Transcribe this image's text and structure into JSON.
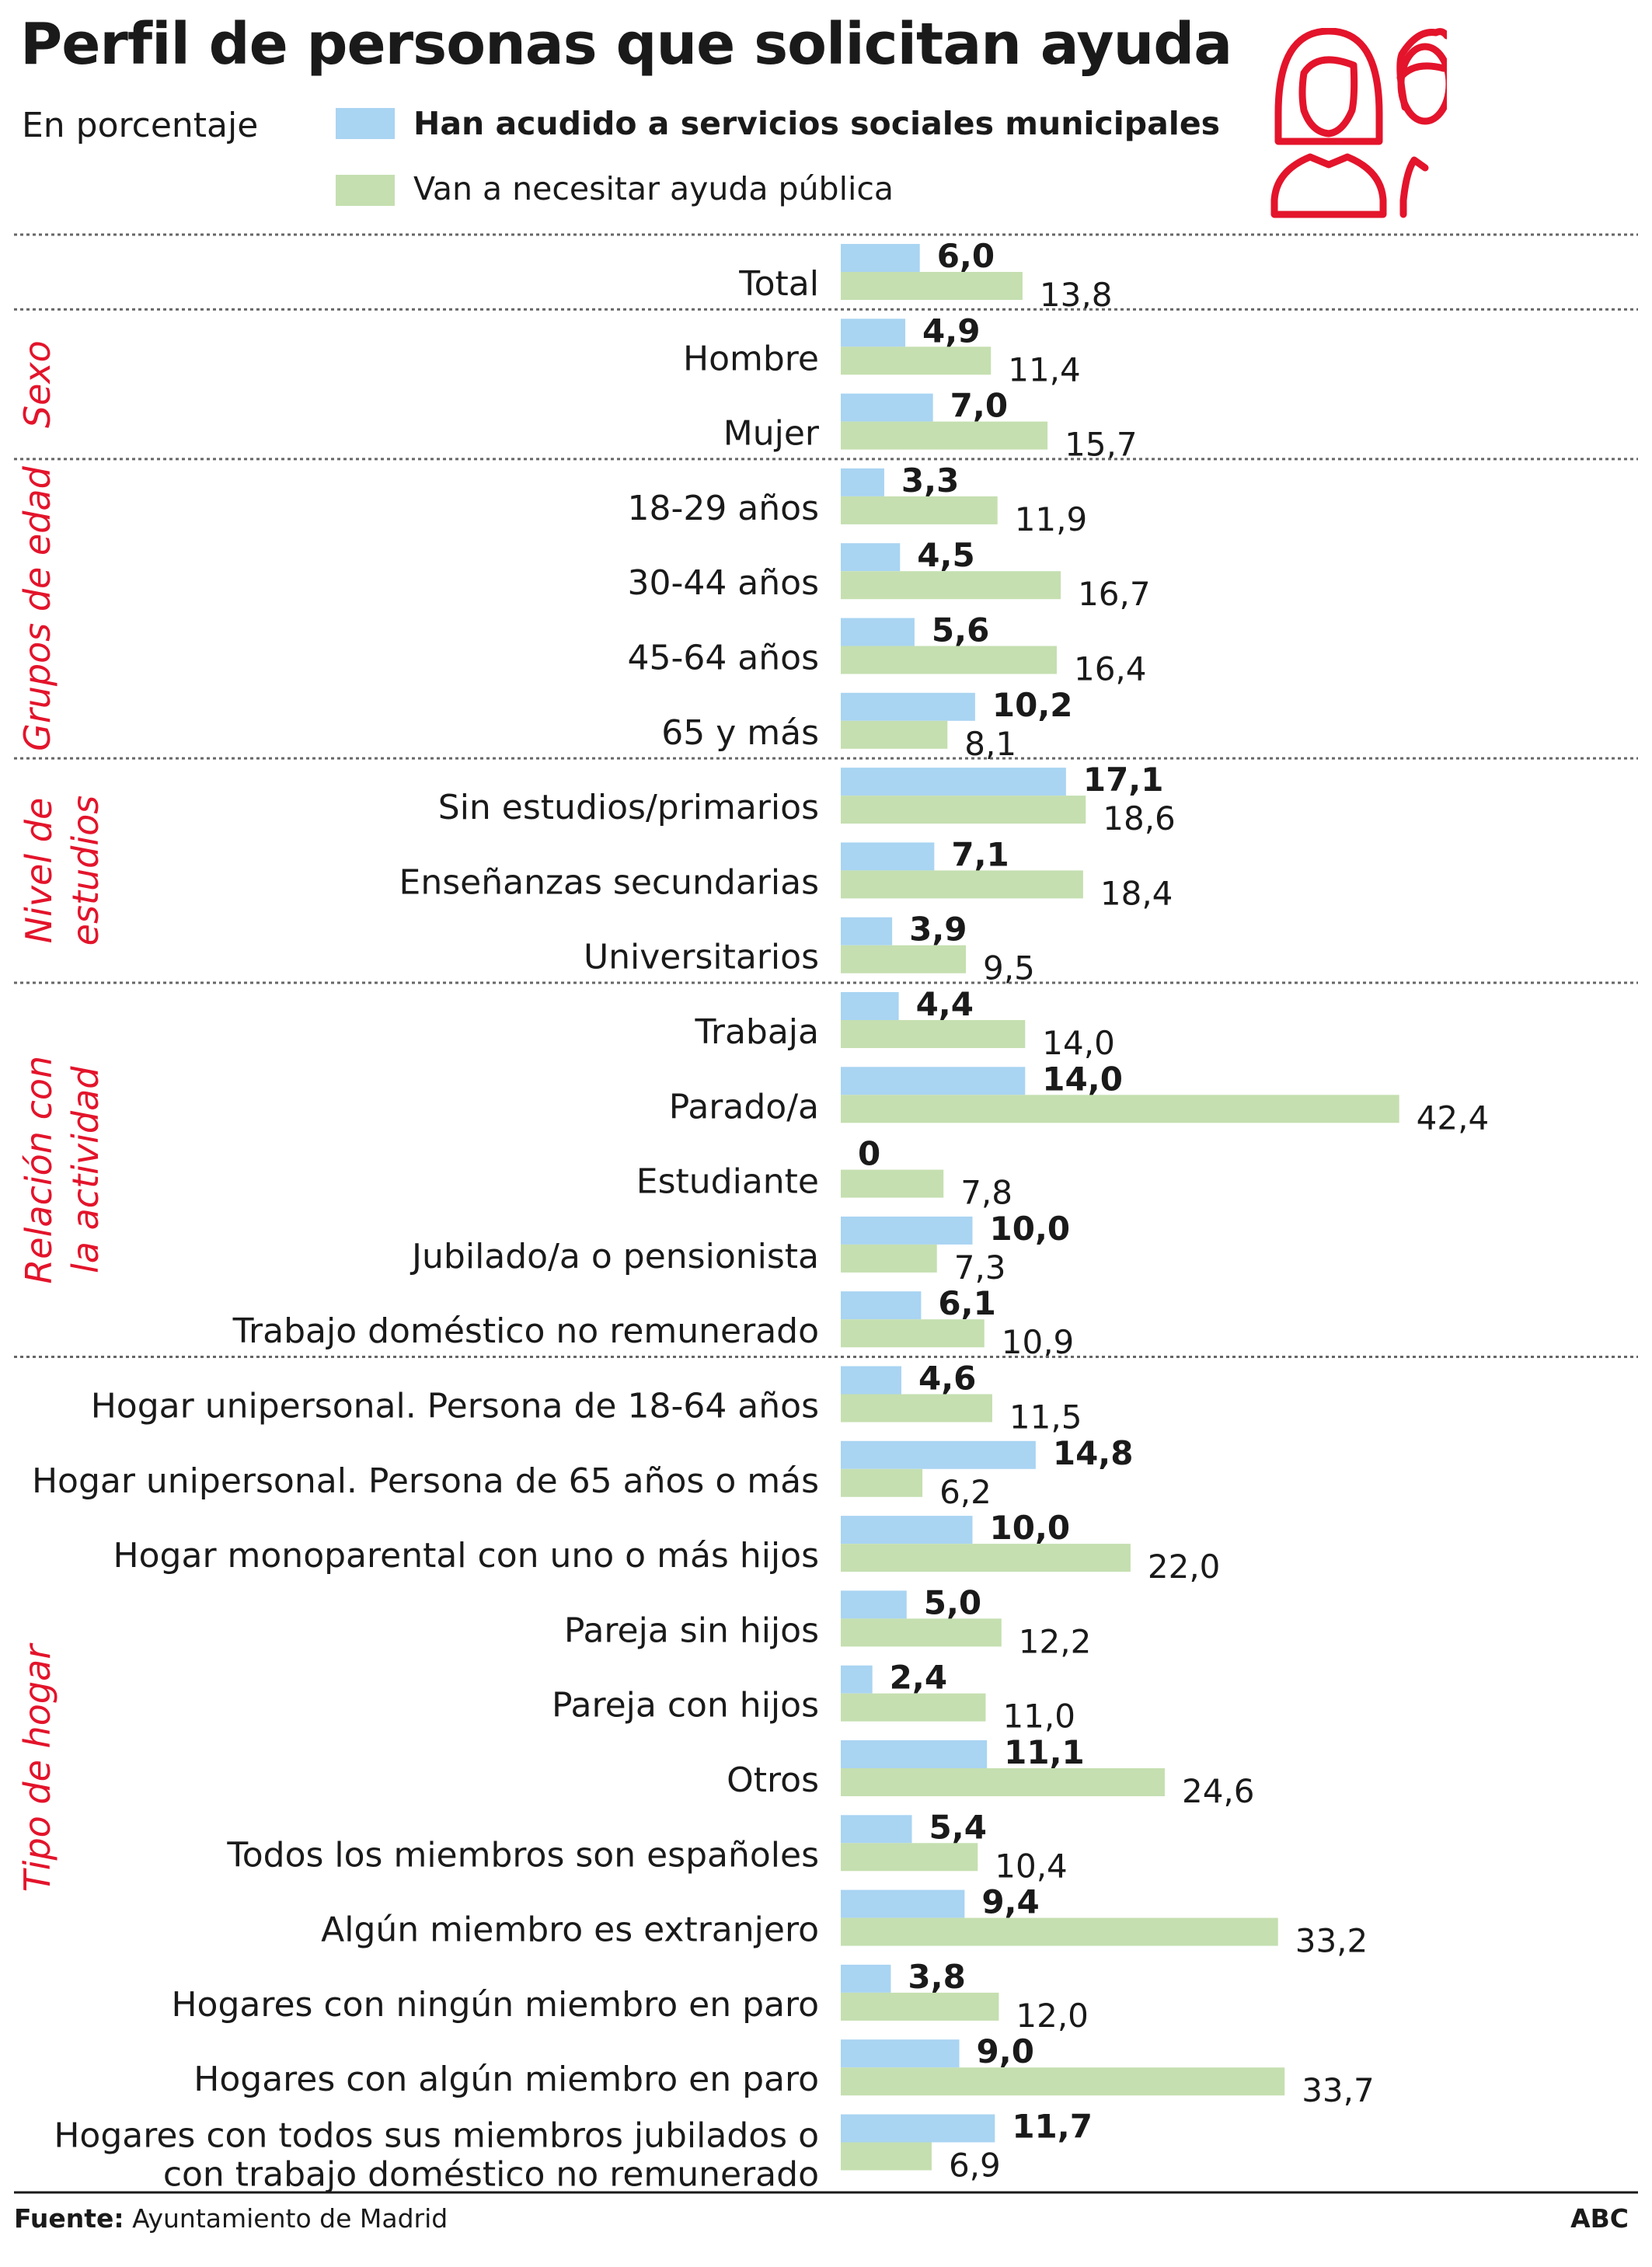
{
  "title": "Perfil de personas que solicitan ayuda",
  "subtitle": "En porcentaje",
  "legend": [
    {
      "label": "Han acudido a servicios sociales municipales",
      "color": "#a9d4f2"
    },
    {
      "label": "Van a necesitar ayuda pública",
      "color": "#c5dfb0"
    }
  ],
  "icons": [
    "woman-icon",
    "man-icon"
  ],
  "colors": {
    "accent": "#e3142b",
    "blue": "#a9d4f2",
    "green": "#c5dfb0",
    "text": "#1a1a1a",
    "divider": "#666666"
  },
  "footer": {
    "source_label": "Fuente:",
    "source_text": "Ayuntamiento de Madrid",
    "brand": "ABC"
  },
  "chart_data": {
    "type": "bar",
    "orientation": "horizontal",
    "title": "Perfil de personas que solicitan ayuda",
    "ylabel": "En porcentaje",
    "series": [
      {
        "name": "Han acudido a servicios sociales municipales"
      },
      {
        "name": "Van a necesitar ayuda pública"
      }
    ],
    "groups": [
      {
        "label": "",
        "rows": [
          {
            "label": "Total",
            "blue": 6.0,
            "blue_label": "6,0",
            "green": 13.8,
            "green_label": "13,8"
          }
        ]
      },
      {
        "label": "Sexo",
        "rows": [
          {
            "label": "Hombre",
            "blue": 4.9,
            "blue_label": "4,9",
            "green": 11.4,
            "green_label": "11,4"
          },
          {
            "label": "Mujer",
            "blue": 7.0,
            "blue_label": "7,0",
            "green": 15.7,
            "green_label": "15,7"
          }
        ]
      },
      {
        "label": "Grupos de edad",
        "rows": [
          {
            "label": "18-29 años",
            "blue": 3.3,
            "blue_label": "3,3",
            "green": 11.9,
            "green_label": "11,9"
          },
          {
            "label": "30-44 años",
            "blue": 4.5,
            "blue_label": "4,5",
            "green": 16.7,
            "green_label": "16,7"
          },
          {
            "label": "45-64 años",
            "blue": 5.6,
            "blue_label": "5,6",
            "green": 16.4,
            "green_label": "16,4"
          },
          {
            "label": "65 y más",
            "blue": 10.2,
            "blue_label": "10,2",
            "green": 8.1,
            "green_label": "8,1"
          }
        ]
      },
      {
        "label": "Nivel de estudios",
        "label_lines": [
          "Nivel de",
          "estudios"
        ],
        "rows": [
          {
            "label": "Sin estudios/primarios",
            "blue": 17.1,
            "blue_label": "17,1",
            "green": 18.6,
            "green_label": "18,6"
          },
          {
            "label": "Enseñanzas secundarias",
            "blue": 7.1,
            "blue_label": "7,1",
            "green": 18.4,
            "green_label": "18,4"
          },
          {
            "label": "Universitarios",
            "blue": 3.9,
            "blue_label": "3,9",
            "green": 9.5,
            "green_label": "9,5"
          }
        ]
      },
      {
        "label": "Relación con la actividad",
        "label_lines": [
          "Relación con",
          "la actividad"
        ],
        "rows": [
          {
            "label": "Trabaja",
            "blue": 4.4,
            "blue_label": "4,4",
            "green": 14.0,
            "green_label": "14,0"
          },
          {
            "label": "Parado/a",
            "blue": 14.0,
            "blue_label": "14,0",
            "green": 42.4,
            "green_label": "42,4"
          },
          {
            "label": "Estudiante",
            "blue": 0,
            "blue_label": "0",
            "green": 7.8,
            "green_label": "7,8"
          },
          {
            "label": "Jubilado/a o pensionista",
            "blue": 10.0,
            "blue_label": "10,0",
            "green": 7.3,
            "green_label": "7,3"
          },
          {
            "label": "Trabajo doméstico no remunerado",
            "blue": 6.1,
            "blue_label": "6,1",
            "green": 10.9,
            "green_label": "10,9"
          }
        ]
      },
      {
        "label": "Tipo de hogar",
        "rows": [
          {
            "label": "Hogar unipersonal. Persona de 18-64 años",
            "blue": 4.6,
            "blue_label": "4,6",
            "green": 11.5,
            "green_label": "11,5"
          },
          {
            "label": "Hogar unipersonal. Persona de 65 años o más",
            "blue": 14.8,
            "blue_label": "14,8",
            "green": 6.2,
            "green_label": "6,2"
          },
          {
            "label": "Hogar monoparental con uno o más hijos",
            "blue": 10.0,
            "blue_label": "10,0",
            "green": 22.0,
            "green_label": "22,0"
          },
          {
            "label": "Pareja sin hijos",
            "blue": 5.0,
            "blue_label": "5,0",
            "green": 12.2,
            "green_label": "12,2"
          },
          {
            "label": "Pareja con hijos",
            "blue": 2.4,
            "blue_label": "2,4",
            "green": 11.0,
            "green_label": "11,0"
          },
          {
            "label": "Otros",
            "blue": 11.1,
            "blue_label": "11,1",
            "green": 24.6,
            "green_label": "24,6"
          },
          {
            "label": "Todos los miembros son españoles",
            "blue": 5.4,
            "blue_label": "5,4",
            "green": 10.4,
            "green_label": "10,4"
          },
          {
            "label": "Algún miembro es extranjero",
            "blue": 9.4,
            "blue_label": "9,4",
            "green": 33.2,
            "green_label": "33,2"
          },
          {
            "label": "Hogares con ningún miembro en paro",
            "blue": 3.8,
            "blue_label": "3,8",
            "green": 12.0,
            "green_label": "12,0"
          },
          {
            "label": "Hogares con algún miembro en paro",
            "blue": 9.0,
            "blue_label": "9,0",
            "green": 33.7,
            "green_label": "33,7"
          },
          {
            "label": "Hogares con todos sus miembros jubilados o con trabajo doméstico no remunerado",
            "label_lines": [
              "Hogares con todos sus miembros jubilados o",
              "con trabajo doméstico no remunerado"
            ],
            "blue": 11.7,
            "blue_label": "11,7",
            "green": 6.9,
            "green_label": "6,9"
          }
        ]
      }
    ],
    "xlim": [
      0,
      42.4
    ],
    "grid": false,
    "legend_position": "top"
  }
}
